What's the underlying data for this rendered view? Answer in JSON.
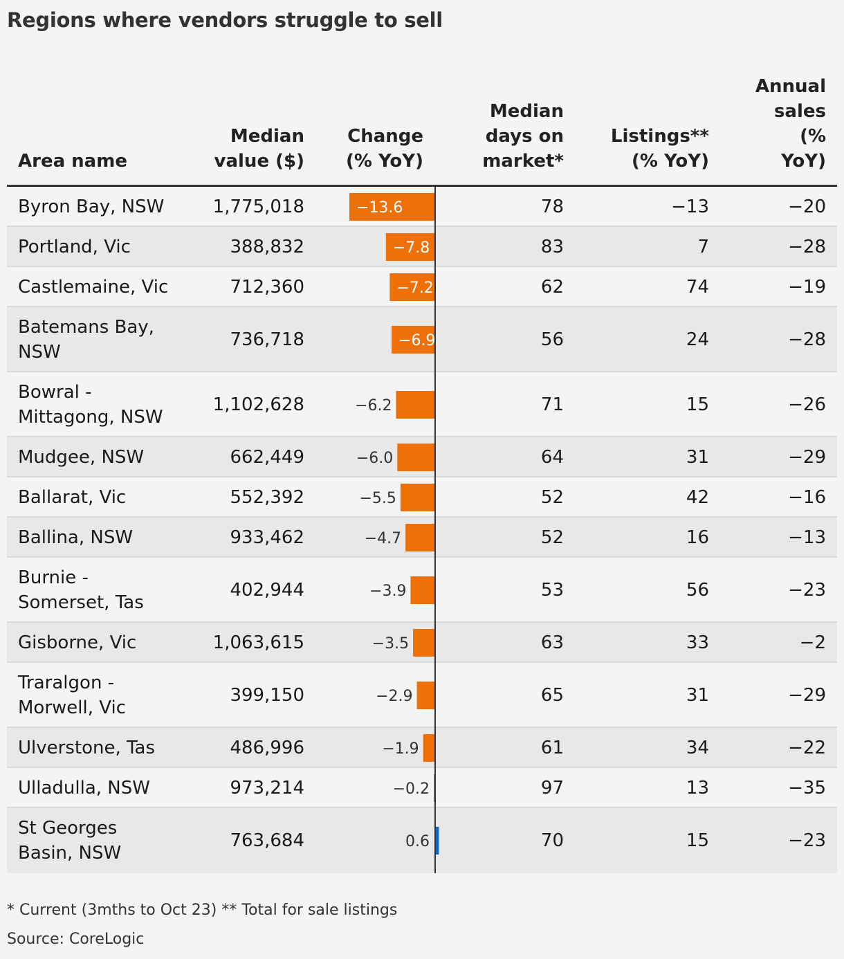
{
  "title": "Regions where vendors struggle to sell",
  "headers": {
    "area": "Area name",
    "median_value": "Median\nvalue ($)",
    "change": "Change\n(% YoY)",
    "days": "Median\ndays on\nmarket*",
    "listings": "Listings**\n(% YoY)",
    "sales": "Annual\nsales\n(%\nYoY)"
  },
  "rows": [
    {
      "area": "Byron Bay, NSW",
      "median_value": "1,775,018",
      "change_label": "−13.6",
      "days": "78",
      "listings": "−13",
      "sales": "−20"
    },
    {
      "area": "Portland, Vic",
      "median_value": "388,832",
      "change_label": "−7.8",
      "days": "83",
      "listings": "7",
      "sales": "−28"
    },
    {
      "area": "Castlemaine, Vic",
      "median_value": "712,360",
      "change_label": "−7.2",
      "days": "62",
      "listings": "74",
      "sales": "−19"
    },
    {
      "area": "Batemans Bay,\nNSW",
      "median_value": "736,718",
      "change_label": "−6.9",
      "days": "56",
      "listings": "24",
      "sales": "−28"
    },
    {
      "area": "Bowral -\nMittagong, NSW",
      "median_value": "1,102,628",
      "change_label": "−6.2",
      "days": "71",
      "listings": "15",
      "sales": "−26"
    },
    {
      "area": "Mudgee, NSW",
      "median_value": "662,449",
      "change_label": "−6.0",
      "days": "64",
      "listings": "31",
      "sales": "−29"
    },
    {
      "area": "Ballarat, Vic",
      "median_value": "552,392",
      "change_label": "−5.5",
      "days": "52",
      "listings": "42",
      "sales": "−16"
    },
    {
      "area": "Ballina, NSW",
      "median_value": "933,462",
      "change_label": "−4.7",
      "days": "52",
      "listings": "16",
      "sales": "−13"
    },
    {
      "area": "Burnie -\nSomerset, Tas",
      "median_value": "402,944",
      "change_label": "−3.9",
      "days": "53",
      "listings": "56",
      "sales": "−23"
    },
    {
      "area": "Gisborne, Vic",
      "median_value": "1,063,615",
      "change_label": "−3.5",
      "days": "63",
      "listings": "33",
      "sales": "−2"
    },
    {
      "area": "Traralgon -\nMorwell, Vic",
      "median_value": "399,150",
      "change_label": "−2.9",
      "days": "65",
      "listings": "31",
      "sales": "−29"
    },
    {
      "area": "Ulverstone, Tas",
      "median_value": "486,996",
      "change_label": "−1.9",
      "days": "61",
      "listings": "34",
      "sales": "−22"
    },
    {
      "area": "Ulladulla, NSW",
      "median_value": "973,214",
      "change_label": "−0.2",
      "days": "97",
      "listings": "13",
      "sales": "−35"
    },
    {
      "area": "St Georges\nBasin, NSW",
      "median_value": "763,684",
      "change_label": "0.6",
      "days": "70",
      "listings": "15",
      "sales": "−23"
    }
  ],
  "footnote": "* Current (3mths to Oct 23) ** Total for sale listings",
  "source": "Source: CoreLogic",
  "colors": {
    "negative": "#f07008",
    "positive": "#1565c0",
    "axis": "#333333"
  },
  "chart_data": {
    "type": "bar",
    "orientation": "horizontal",
    "title": "Regions where vendors struggle to sell",
    "xlabel": "Change\n(% YoY)",
    "categories": [
      "Byron Bay, NSW",
      "Portland, Vic",
      "Castlemaine, Vic",
      "Batemans Bay, NSW",
      "Bowral - Mittagong, NSW",
      "Mudgee, NSW",
      "Ballarat, Vic",
      "Ballina, NSW",
      "Burnie - Somerset, Tas",
      "Gisborne, Vic",
      "Traralgon - Morwell, Vic",
      "Ulverstone, Tas",
      "Ulladulla, NSW",
      "St Georges Basin, NSW"
    ],
    "values": [
      -13.6,
      -7.8,
      -7.2,
      -6.9,
      -6.2,
      -6.0,
      -5.5,
      -4.7,
      -3.9,
      -3.5,
      -2.9,
      -1.9,
      -0.2,
      0.6
    ],
    "xlim": [
      -13.6,
      0.6
    ],
    "grid": false,
    "legend": "none"
  }
}
